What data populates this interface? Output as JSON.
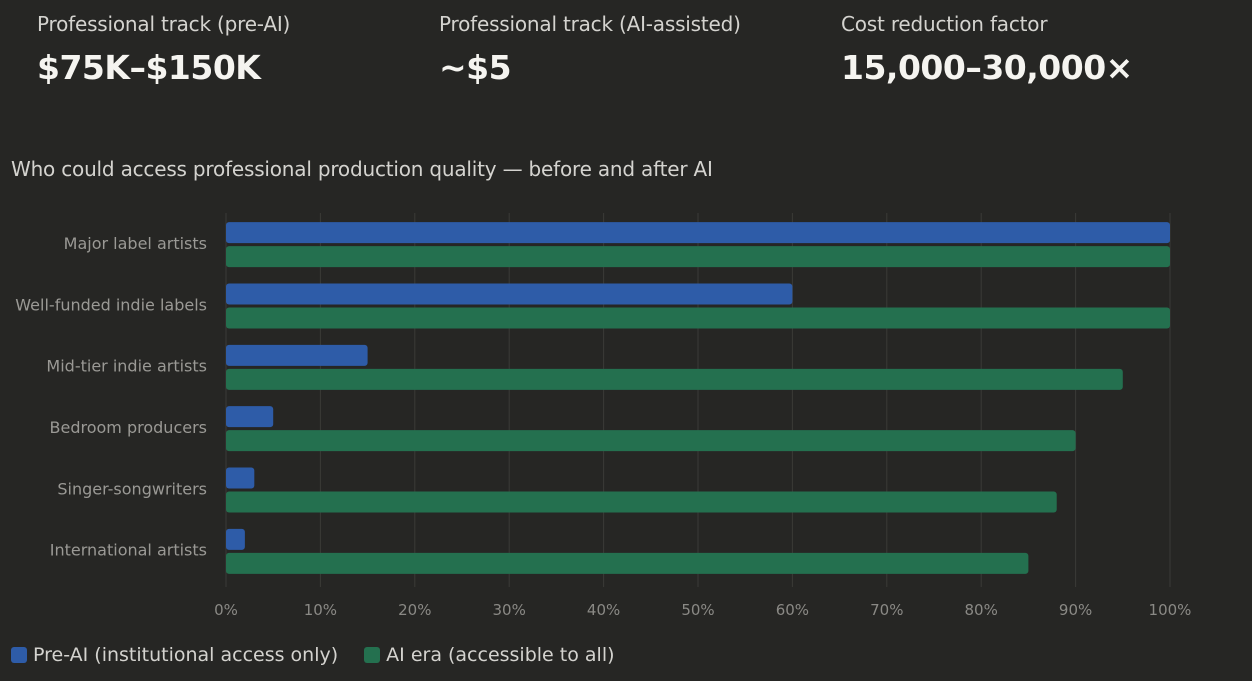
{
  "stats": [
    {
      "label": "Professional track (pre-AI)",
      "value": "$75K–$150K"
    },
    {
      "label": "Professional track (AI-assisted)",
      "value": "~$5"
    },
    {
      "label": "Cost reduction factor",
      "value": "15,000–30,000×"
    }
  ],
  "colors": {
    "pre_ai": "#2e5ca8",
    "ai_era": "#24704f",
    "grid": "#3a3a37",
    "tick_text": "#8a8985",
    "category_text": "#9a9995"
  },
  "chart_data": {
    "type": "bar",
    "orientation": "horizontal",
    "title": "Who could access professional production quality — before and after AI",
    "categories": [
      "Major label artists",
      "Well-funded indie labels",
      "Mid-tier indie artists",
      "Bedroom producers",
      "Singer-songwriters",
      "International artists"
    ],
    "series": [
      {
        "name": "Pre-AI (institutional access only)",
        "values": [
          100,
          60,
          15,
          5,
          3,
          2
        ]
      },
      {
        "name": "AI era (accessible to all)",
        "values": [
          100,
          100,
          95,
          90,
          88,
          85
        ]
      }
    ],
    "xlim": [
      0,
      100
    ],
    "xticks": [
      0,
      10,
      20,
      30,
      40,
      50,
      60,
      70,
      80,
      90,
      100
    ],
    "xtick_labels": [
      "0%",
      "10%",
      "20%",
      "30%",
      "40%",
      "50%",
      "60%",
      "70%",
      "80%",
      "90%",
      "100%"
    ],
    "grid": true,
    "legend_position": "bottom-left"
  }
}
